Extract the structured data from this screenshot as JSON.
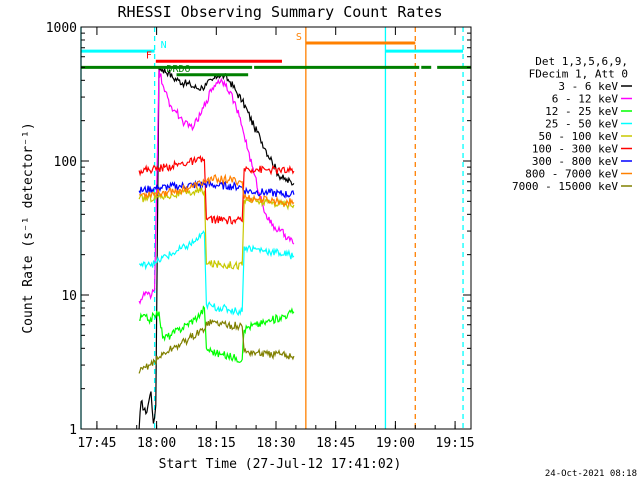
{
  "chart_data": {
    "type": "line",
    "title": "RHESSI Observing Summary Count Rates",
    "xlabel": "Start Time (27-Jul-12 17:41:02)",
    "ylabel": "Count Rate (s⁻¹ detector⁻¹)",
    "x_unit": "minutes after 17:41:02",
    "xlim": [
      0,
      98
    ],
    "ylim": [
      1,
      1000
    ],
    "y_scale": "log",
    "x_ticks": [
      {
        "label": "17:45",
        "x": 4
      },
      {
        "label": "18:00",
        "x": 19
      },
      {
        "label": "18:15",
        "x": 34
      },
      {
        "label": "18:30",
        "x": 49
      },
      {
        "label": "18:45",
        "x": 64
      },
      {
        "label": "19:00",
        "x": 79
      },
      {
        "label": "19:15",
        "x": 94
      }
    ],
    "y_ticks": [
      {
        "label": "1",
        "y": 1
      },
      {
        "label": "10",
        "y": 10
      },
      {
        "label": "100",
        "y": 100
      },
      {
        "label": "1000",
        "y": 1000
      }
    ],
    "legend_header": [
      "Det 1,3,5,6,9,",
      "FDecim 1, Att 0"
    ],
    "legend_placement": "right",
    "series": [
      {
        "name": "3 - 6 keV",
        "color": "#000000",
        "x": [
          14.6,
          15.1,
          16.3,
          17.6,
          18.2,
          18.8,
          19.6,
          20.5,
          22,
          23,
          24.5,
          26,
          27.5,
          29,
          30.5,
          31.5,
          33,
          34.5,
          36,
          37.5,
          39,
          40.5,
          42,
          43.5,
          45,
          46.5,
          48,
          49.5,
          51,
          53.5
        ],
        "y": [
          1,
          1.6,
          1.3,
          1.9,
          1.1,
          1.5,
          500,
          480,
          460,
          420,
          400,
          380,
          370,
          350,
          355,
          370,
          400,
          440,
          430,
          390,
          330,
          280,
          230,
          180,
          150,
          120,
          100,
          80,
          73,
          68
        ]
      },
      {
        "name": "6 - 12 keV",
        "color": "#ff00ff",
        "x": [
          14.6,
          16.5,
          17.5,
          18.5,
          19.6,
          21,
          22.5,
          24,
          25.5,
          27,
          28.5,
          30,
          31.5,
          33,
          34.5,
          36,
          37.5,
          39,
          40.5,
          42,
          43.5,
          45,
          46.5,
          48,
          50,
          52,
          53.5
        ],
        "y": [
          9,
          10.5,
          9.5,
          11,
          480,
          330,
          260,
          230,
          200,
          180,
          185,
          220,
          280,
          350,
          400,
          390,
          330,
          250,
          180,
          120,
          80,
          55,
          40,
          33,
          30,
          27,
          24
        ]
      },
      {
        "name": "12 - 25 keV",
        "color": "#00ff00",
        "x": [
          14.6,
          15.5,
          17,
          18.5,
          19.6,
          20.5,
          22.5,
          24.5,
          26.5,
          28.5,
          30,
          31,
          31.5,
          33,
          35,
          37,
          39,
          40.5,
          41,
          42,
          44,
          46,
          48,
          50,
          52,
          53.5
        ],
        "y": [
          6.5,
          7,
          6.5,
          7,
          7.5,
          4.8,
          5,
          5.5,
          6,
          6.6,
          7.2,
          8,
          4,
          3.8,
          3.6,
          3.5,
          3.4,
          3.3,
          5.5,
          5.8,
          6,
          6.2,
          6.5,
          6.8,
          7.2,
          7.5
        ]
      },
      {
        "name": "25 - 50 keV",
        "color": "#00ffff",
        "x": [
          14.6,
          15.5,
          17,
          18.5,
          19.6,
          20.5,
          22.5,
          24.5,
          26.5,
          28.5,
          30,
          31,
          31.5,
          33,
          35,
          37,
          39,
          40.5,
          41,
          42,
          44,
          46,
          48,
          50,
          52,
          53.5
        ],
        "y": [
          17,
          16.5,
          17.5,
          17,
          18,
          19,
          20,
          21.5,
          23,
          25,
          27,
          29,
          8.5,
          8.2,
          8,
          7.8,
          7.6,
          7.5,
          23,
          22.5,
          22,
          21.5,
          21,
          20.5,
          20,
          19.5
        ]
      },
      {
        "name": "50 - 100 keV",
        "color": "#c8c800",
        "x": [
          14.6,
          19.6,
          21,
          23,
          25,
          27,
          29,
          31,
          31.5,
          34,
          37,
          40.5,
          41,
          44,
          47,
          50,
          53.5
        ],
        "y": [
          52,
          54,
          55,
          56,
          57,
          58,
          59,
          60,
          17,
          17,
          16.8,
          16.6,
          51,
          50,
          49,
          48,
          47
        ]
      },
      {
        "name": "100 - 300 keV",
        "color": "#ff0000",
        "x": [
          14.6,
          19.6,
          21,
          23,
          25,
          27,
          29,
          31,
          31.5,
          34,
          37,
          40.5,
          41,
          44,
          47,
          50,
          53.5
        ],
        "y": [
          85,
          88,
          90,
          92,
          95,
          98,
          100,
          102,
          37,
          36.5,
          36,
          35.5,
          88,
          87,
          86,
          85,
          84
        ]
      },
      {
        "name": "300 - 800 keV",
        "color": "#0000ff",
        "x": [
          14.6,
          19.6,
          22,
          25,
          28,
          31,
          34,
          37,
          40.5,
          41,
          44,
          47,
          50,
          53.5
        ],
        "y": [
          60,
          63,
          64,
          65,
          66,
          67,
          66,
          65,
          64,
          60,
          59,
          58,
          57,
          56
        ]
      },
      {
        "name": "800 - 7000 keV",
        "color": "#ff8000",
        "x": [
          14.6,
          19.6,
          22,
          25,
          28,
          31,
          34,
          37,
          40.5,
          41,
          44,
          47,
          50,
          53.5
        ],
        "y": [
          56,
          58,
          59,
          61,
          64,
          70,
          74,
          72,
          70,
          53,
          52,
          51,
          50,
          49
        ]
      },
      {
        "name": "7000 - 15000 keV",
        "color": "#808000",
        "x": [
          14.6,
          15.5,
          17,
          18.5,
          19.6,
          21,
          23,
          25,
          27,
          29,
          31,
          31.5,
          34,
          37,
          40.5,
          41,
          44,
          47,
          50,
          53.5
        ],
        "y": [
          2.6,
          2.8,
          3,
          3.2,
          3.4,
          3.7,
          4,
          4.3,
          4.7,
          5.1,
          5.5,
          6.3,
          6.2,
          6.0,
          5.8,
          3.8,
          3.7,
          3.6,
          3.6,
          3.5
        ]
      }
    ],
    "state_bars": [
      {
        "name": "N",
        "label": "N",
        "color": "#00ffff",
        "segments": [
          [
            0,
            18.5
          ],
          [
            76.5,
            96
          ]
        ],
        "y": 660
      },
      {
        "name": "F",
        "label": "F",
        "color": "#ff0000",
        "segments": [
          [
            18.8,
            50.5
          ]
        ],
        "y": 555
      },
      {
        "name": "DRDO",
        "label": "DRDO",
        "color": "#008000",
        "segments": [
          [
            24,
            42
          ]
        ],
        "y": 440
      },
      {
        "name": "S",
        "label": "S",
        "color": "#ff8000",
        "segments": [
          [
            56.5,
            84
          ]
        ],
        "y": 760
      },
      {
        "name": "night-or-saa",
        "label": "",
        "color": "#008000",
        "segments": [
          [
            0,
            43
          ],
          [
            43.5,
            85
          ],
          [
            85.5,
            88
          ],
          [
            89.5,
            98
          ]
        ],
        "y": 500
      }
    ],
    "vertical_markers": [
      {
        "x": 0,
        "color": "#00ffff",
        "style": "solid"
      },
      {
        "x": 18.5,
        "color": "#00ffff",
        "style": "dashed"
      },
      {
        "x": 56.5,
        "color": "#ff8000",
        "style": "solid"
      },
      {
        "x": 76.5,
        "color": "#00ffff",
        "style": "solid"
      },
      {
        "x": 84.0,
        "color": "#ff8000",
        "style": "dashed"
      },
      {
        "x": 96.0,
        "color": "#00ffff",
        "style": "dashed"
      }
    ],
    "timestamp": "24-Oct-2021 08:18"
  }
}
